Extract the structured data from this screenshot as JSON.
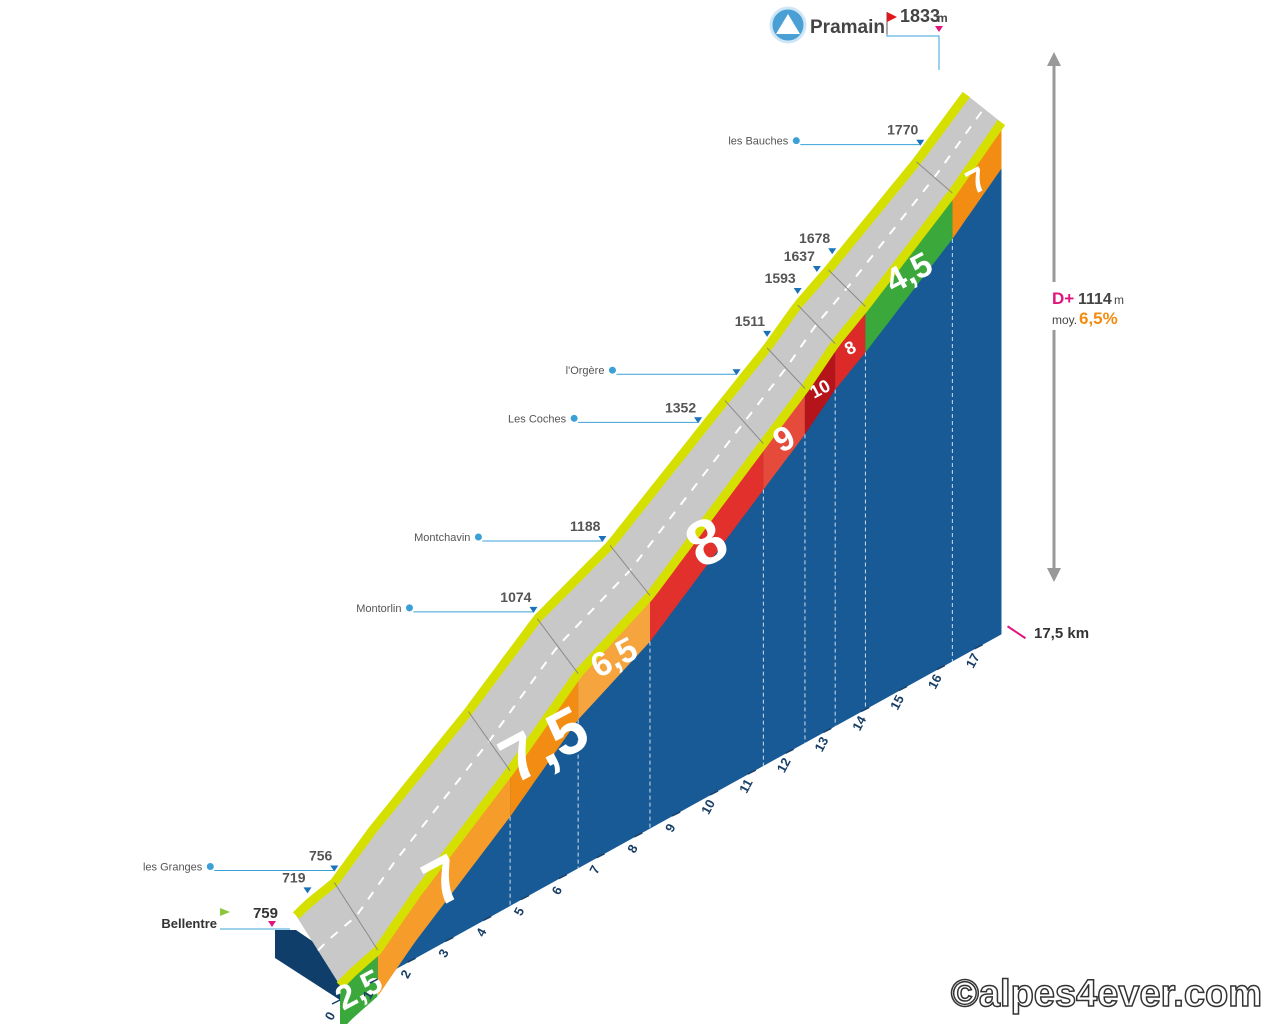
{
  "chart_data": {
    "type": "area",
    "title": "Pramain",
    "start_name": "Bellentre",
    "summit_elevation": "1833",
    "summit_unit": "m",
    "total_distance_label": "17,5 km",
    "elevation_gain_prefix": "D+",
    "elevation_gain_value": "1114",
    "elevation_gain_unit": "m",
    "average_prefix": "moy.",
    "average_gradient": "6,5%",
    "km_ticks": [
      "0",
      "1",
      "2",
      "3",
      "4",
      "5",
      "6",
      "7",
      "8",
      "9",
      "10",
      "11",
      "12",
      "13",
      "14",
      "15",
      "16",
      "17"
    ],
    "segments": [
      {
        "from_km": 0,
        "to_km": 1,
        "gradient": 2.5,
        "label": "2,5",
        "color": "#3aa83a"
      },
      {
        "from_km": 1,
        "to_km": 4.5,
        "gradient": 7,
        "label": "7",
        "color": "#f59c2a"
      },
      {
        "from_km": 4.5,
        "to_km": 6.3,
        "gradient": 7.5,
        "label": "7,5",
        "color": "#f28c12"
      },
      {
        "from_km": 6.3,
        "to_km": 8.2,
        "gradient": 6.5,
        "label": "6,5",
        "color": "#f6a43e"
      },
      {
        "from_km": 8.2,
        "to_km": 11.2,
        "gradient": 8,
        "label": "8",
        "color": "#e2302c"
      },
      {
        "from_km": 11.2,
        "to_km": 12.3,
        "gradient": 9,
        "label": "9",
        "color": "#e64a3a"
      },
      {
        "from_km": 12.3,
        "to_km": 13.1,
        "gradient": 10,
        "label": "10",
        "color": "#b4141a"
      },
      {
        "from_km": 13.1,
        "to_km": 13.9,
        "gradient": 8,
        "label": "8",
        "color": "#dc2a28"
      },
      {
        "from_km": 13.9,
        "to_km": 16.2,
        "gradient": 4.5,
        "label": "4,5",
        "color": "#3aa83a"
      },
      {
        "from_km": 16.2,
        "to_km": 17.5,
        "gradient": 7,
        "label": "7",
        "color": "#f28c12"
      }
    ],
    "waypoints": [
      {
        "km": 0.0,
        "elevation": "759",
        "name": "Bellentre",
        "icon": "flag-green-icon"
      },
      {
        "km": 0.3,
        "elevation": "719",
        "name": "",
        "icon": ""
      },
      {
        "km": 1.0,
        "elevation": "756",
        "name": "les Granges",
        "icon": "chalet-icon"
      },
      {
        "km": 6.2,
        "elevation": "1074",
        "name": "Montorlin",
        "icon": "church-icon"
      },
      {
        "km": 8.0,
        "elevation": "1188",
        "name": "Montchavin",
        "icon": "church-icon"
      },
      {
        "km": 10.5,
        "elevation": "1352",
        "name": "Les Coches",
        "icon": "cable-car-icon"
      },
      {
        "km": 11.5,
        "elevation": "",
        "name": "l'Orgère",
        "icon": "chalet-icon"
      },
      {
        "km": 12.3,
        "elevation": "1511",
        "name": "",
        "icon": ""
      },
      {
        "km": 13.1,
        "elevation": "1593",
        "name": "",
        "icon": ""
      },
      {
        "km": 13.6,
        "elevation": "1637",
        "name": "",
        "icon": ""
      },
      {
        "km": 14.0,
        "elevation": "1678",
        "name": "",
        "icon": ""
      },
      {
        "km": 16.3,
        "elevation": "1770",
        "name": "les Bauches",
        "icon": "chalet-icon"
      },
      {
        "km": 17.5,
        "elevation": "1833",
        "name": "Pramain",
        "icon": "flag-red-icon"
      }
    ],
    "watermark": "©alpes4ever.com",
    "colors": {
      "side_wall": "#175a96",
      "road": "#c8c8c8",
      "road_edge": "#d6e000",
      "marker_blue": "#1a73b8",
      "marker_pink": "#e0147c",
      "flag_red": "#e3161b",
      "flag_green": "#8cc63f"
    }
  }
}
